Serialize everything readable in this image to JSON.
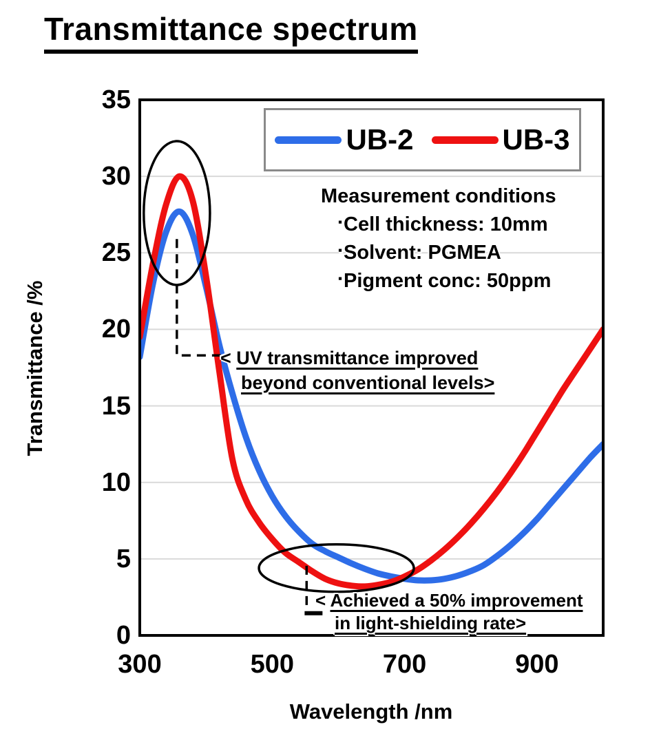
{
  "page": {
    "heading": "Transmittance spectrum"
  },
  "chart_data": {
    "type": "line",
    "title": "Transmittance spectrum",
    "xlabel": "Wavelength /nm",
    "ylabel": "Transmittance /%",
    "xlim": [
      300,
      1000
    ],
    "ylim": [
      0,
      35
    ],
    "xticks": [
      300,
      500,
      700,
      900
    ],
    "yticks": [
      0,
      5,
      10,
      15,
      20,
      25,
      30,
      35
    ],
    "grid": "horizontal-only",
    "grid_color": "#d9d9d9",
    "x_nm": [
      300,
      320,
      340,
      360,
      380,
      400,
      420,
      440,
      460,
      480,
      500,
      520,
      540,
      560,
      580,
      600,
      620,
      640,
      660,
      680,
      700,
      720,
      740,
      760,
      780,
      800,
      820,
      840,
      860,
      880,
      900,
      920,
      940,
      960,
      980,
      1000
    ],
    "series": [
      {
        "name": "UB-2",
        "color": "#2e6de8",
        "values": [
          18.2,
          23.0,
          26.4,
          27.7,
          26.2,
          22.8,
          19.0,
          15.8,
          13.0,
          10.8,
          9.1,
          7.8,
          6.8,
          6.0,
          5.5,
          5.1,
          4.7,
          4.35,
          4.05,
          3.85,
          3.7,
          3.6,
          3.6,
          3.7,
          3.9,
          4.2,
          4.6,
          5.2,
          5.9,
          6.7,
          7.6,
          8.6,
          9.6,
          10.6,
          11.6,
          12.5
        ]
      },
      {
        "name": "UB-3",
        "color": "#ee1111",
        "values": [
          19.5,
          24.3,
          28.2,
          30.0,
          28.4,
          23.5,
          17.3,
          11.5,
          8.9,
          7.4,
          6.3,
          5.4,
          4.8,
          4.2,
          3.7,
          3.4,
          3.25,
          3.2,
          3.3,
          3.5,
          3.85,
          4.3,
          4.9,
          5.6,
          6.4,
          7.3,
          8.3,
          9.4,
          10.6,
          11.9,
          13.3,
          14.7,
          16.1,
          17.4,
          18.7,
          20.0
        ]
      }
    ],
    "legend_position": "top-center-inside",
    "overlays": {
      "ellipses": [
        {
          "label": "uv-peak-highlight",
          "cx_nm": 356,
          "cy_pct": 27.6,
          "rx_nm": 50,
          "ry_pct": 4.7
        },
        {
          "label": "shielding-min-highlight",
          "cx_nm": 597,
          "cy_pct": 4.4,
          "rx_nm": 117,
          "ry_pct": 1.55
        }
      ],
      "dashed_connectors": [
        {
          "points": [
            [
              356,
              25.9
            ],
            [
              356,
              18.3
            ],
            [
              438,
              18.3
            ]
          ]
        },
        {
          "points": [
            [
              552,
              4.55
            ],
            [
              552,
              1.6
            ]
          ]
        }
      ],
      "solid_tick": {
        "points": [
          [
            549,
            1.45
          ],
          [
            576,
            1.45
          ]
        ]
      }
    }
  },
  "conditions": {
    "heading": "Measurement conditions",
    "bullet": "▪",
    "items": [
      "Cell thickness: 10mm",
      "Solvent: PGMEA",
      "Pigment conc: 50ppm"
    ]
  },
  "annotations": {
    "uv": {
      "prefix": "< ",
      "line1": "UV transmittance improved",
      "line2": "beyond conventional levels>"
    },
    "shielding": {
      "prefix": "< ",
      "line1": "Achieved a 50% improvement",
      "line2": "in light-shielding rate>"
    }
  }
}
